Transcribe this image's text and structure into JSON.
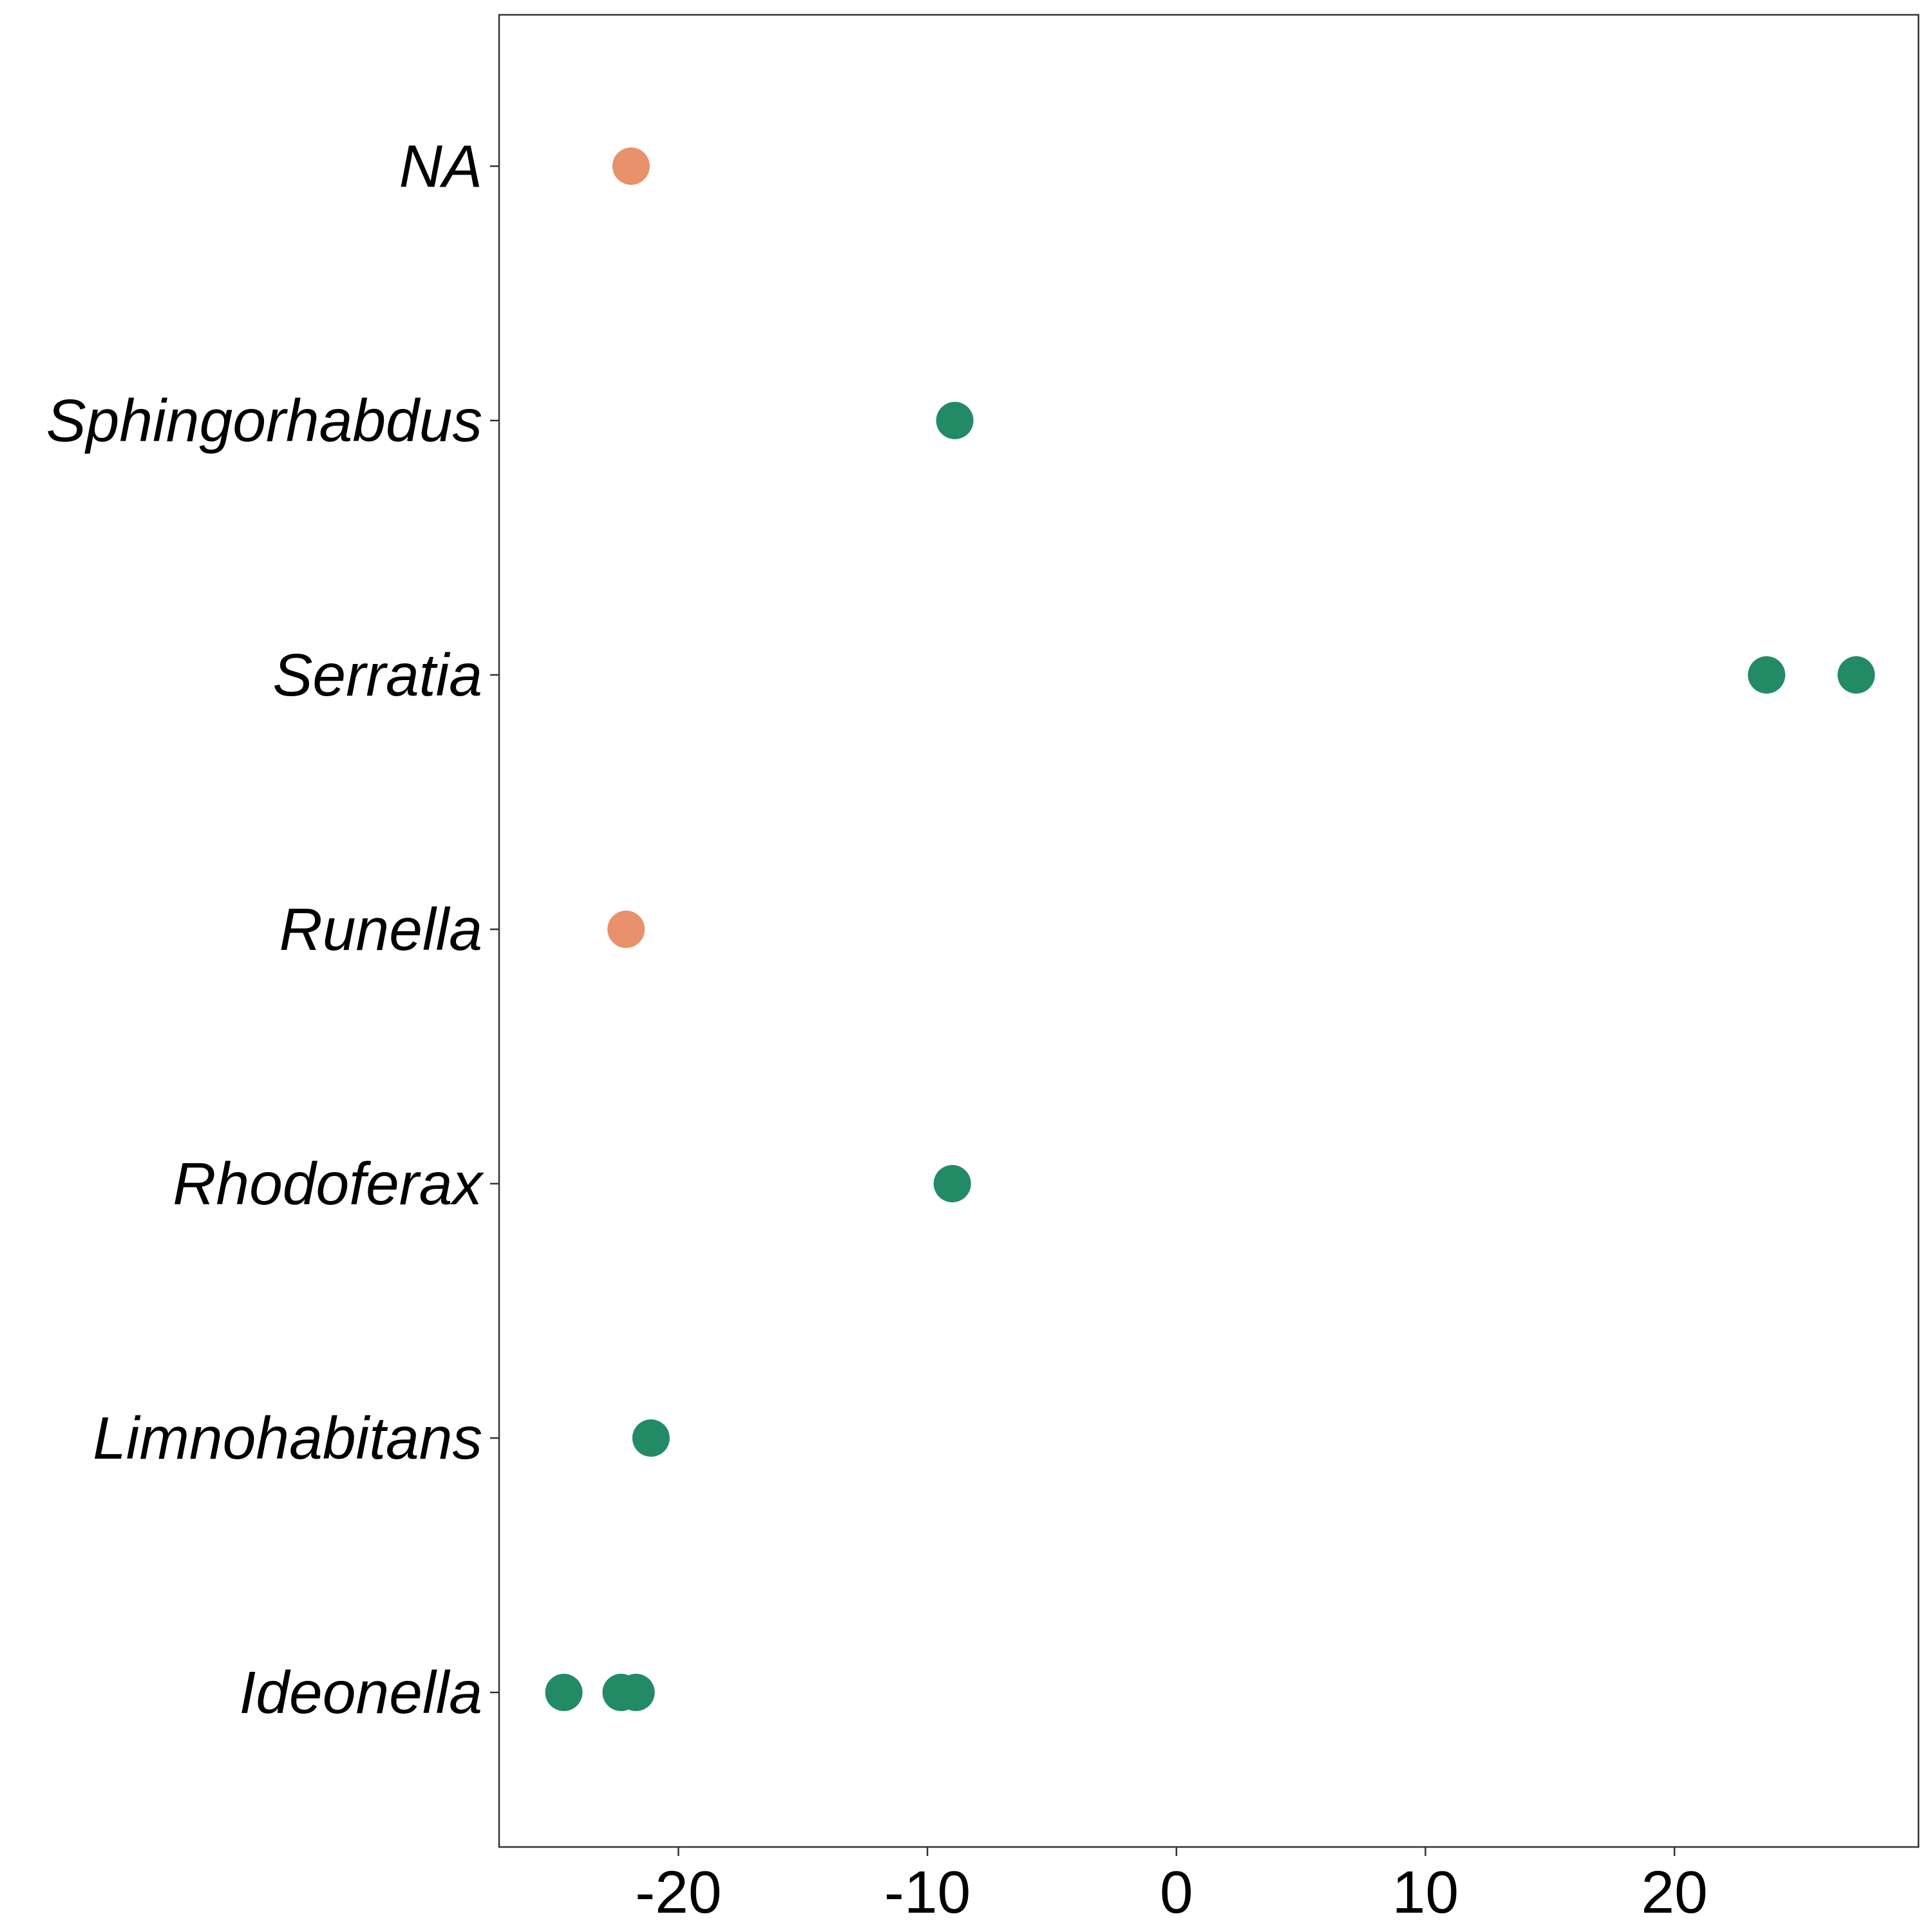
{
  "chart_data": {
    "type": "scatter",
    "title": "",
    "xlabel": "",
    "ylabel": "",
    "xlim": [
      -27.2,
      29.8
    ],
    "xticks": [
      -20,
      -10,
      0,
      10,
      20
    ],
    "xtick_labels": [
      "-20",
      "-10",
      "0",
      "10",
      "20"
    ],
    "categories": [
      "Ideonella",
      "Limnohabitans",
      "Rhodoferax",
      "Runella",
      "Serratia",
      "Sphingorhabdus",
      "NA"
    ],
    "grid": false,
    "legend": "none",
    "colors": {
      "positive": "#228B66",
      "negative": "#E8916A",
      "axis": "#333333",
      "text": "#000000"
    },
    "points": [
      {
        "category": "NA",
        "x": -21.9,
        "group": "negative"
      },
      {
        "category": "Sphingorhabdus",
        "x": -8.9,
        "group": "positive"
      },
      {
        "category": "Serratia",
        "x": 23.7,
        "group": "positive"
      },
      {
        "category": "Serratia",
        "x": 27.3,
        "group": "positive"
      },
      {
        "category": "Runella",
        "x": -22.1,
        "group": "negative"
      },
      {
        "category": "Rhodoferax",
        "x": -9.0,
        "group": "positive"
      },
      {
        "category": "Limnohabitans",
        "x": -21.1,
        "group": "positive"
      },
      {
        "category": "Ideonella",
        "x": -24.6,
        "group": "positive"
      },
      {
        "category": "Ideonella",
        "x": -22.3,
        "group": "positive"
      },
      {
        "category": "Ideonella",
        "x": -21.7,
        "group": "positive"
      }
    ]
  }
}
